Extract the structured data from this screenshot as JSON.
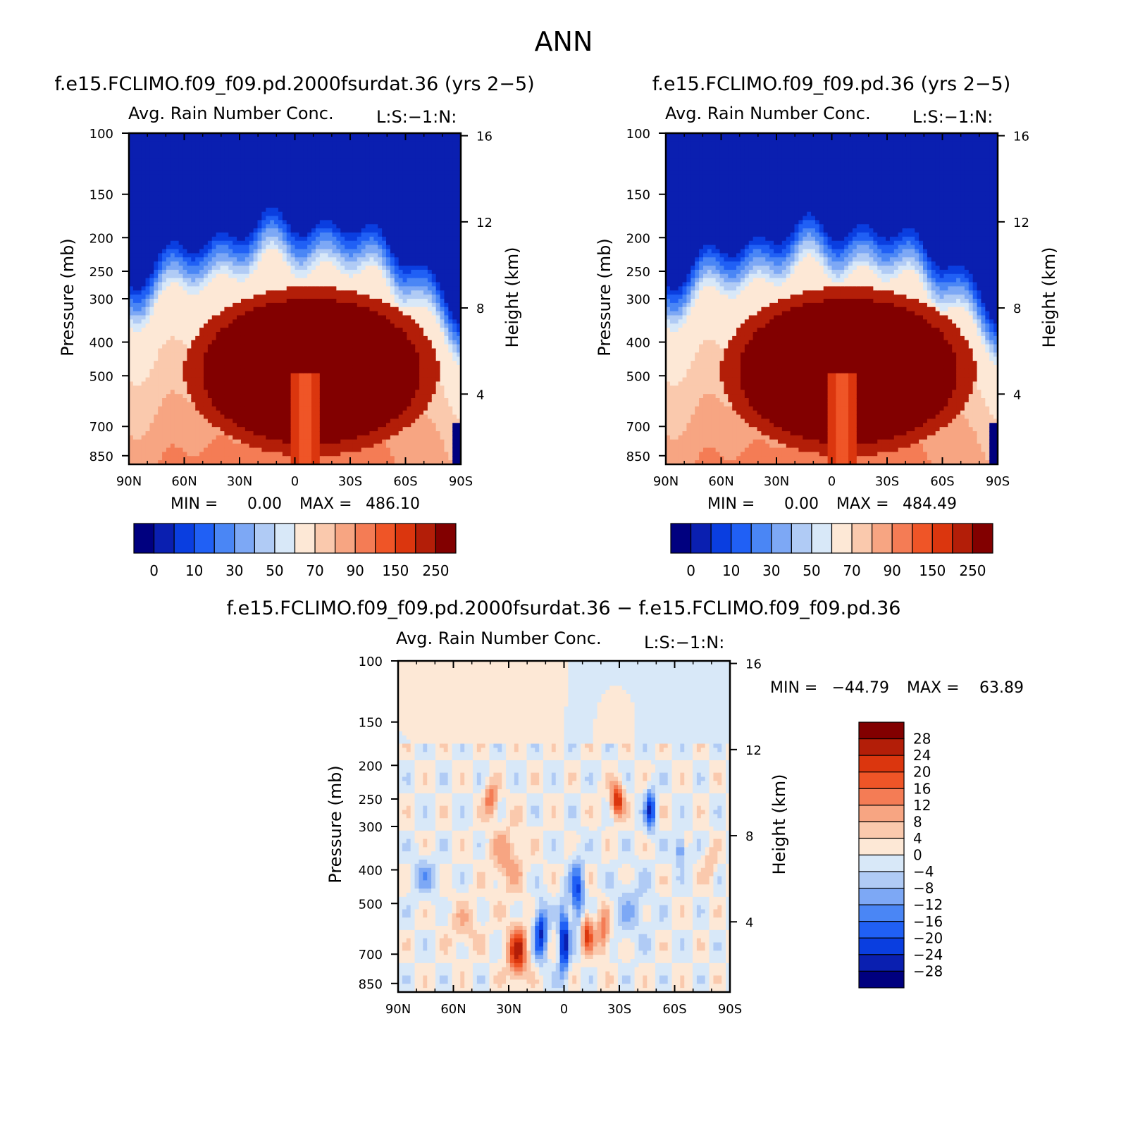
{
  "figure_title": "ANN",
  "colors": {
    "ctrl_levels": [
      "#00007f",
      "#0a1fb0",
      "#0a3ee0",
      "#2060f5",
      "#4a86f5",
      "#7da8f5",
      "#b0cbf5",
      "#d8e8f8",
      "#fde8d6",
      "#fac9ad",
      "#f7a582",
      "#f47c55",
      "#ef5527",
      "#db360e",
      "#b31e08",
      "#820000"
    ],
    "diff_levels": [
      "#00007f",
      "#0a1fb0",
      "#0a3ee0",
      "#2060f5",
      "#4a86f5",
      "#7da8f5",
      "#b0cbf5",
      "#d8e8f8",
      "#fde8d6",
      "#fac9ad",
      "#f7a582",
      "#f47c55",
      "#ef5527",
      "#db360e",
      "#b31e08",
      "#820000"
    ]
  },
  "chart_data": [
    {
      "type": "heatmap",
      "title": "f.e15.FCLIMO.f09_f09.pd.2000fsurdat.36 (yrs 2−5)",
      "subtitle_left": "Avg. Rain Number Conc.",
      "subtitle_right": "L:S:−1:N:",
      "xlabel": "",
      "ylabel": "Pressure (mb)",
      "ylabel_right": "Height (km)",
      "x_ticks": [
        "90N",
        "60N",
        "30N",
        "0",
        "30S",
        "60S",
        "90S"
      ],
      "y_ticks": [
        "100",
        "150",
        "200",
        "250",
        "300",
        "400",
        "500",
        "700",
        "850"
      ],
      "y_right_ticks": [
        "16",
        "12",
        "8",
        "4"
      ],
      "min_text": "MIN =",
      "min_value": "0.00",
      "max_text": "MAX =",
      "max_value": "486.10",
      "colorbar_labels": [
        "0",
        "10",
        "30",
        "50",
        "70",
        "90",
        "150",
        "250"
      ],
      "colorbar_orientation": "horizontal",
      "domain_min": 0.0,
      "domain_max": 486.1,
      "ylim": [
        100,
        850
      ]
    },
    {
      "type": "heatmap",
      "title": "f.e15.FCLIMO.f09_f09.pd.36 (yrs 2−5)",
      "subtitle_left": "Avg. Rain Number Conc.",
      "subtitle_right": "L:S:−1:N:",
      "xlabel": "",
      "ylabel": "Pressure (mb)",
      "ylabel_right": "Height (km)",
      "x_ticks": [
        "90N",
        "60N",
        "30N",
        "0",
        "30S",
        "60S",
        "90S"
      ],
      "y_ticks": [
        "100",
        "150",
        "200",
        "250",
        "300",
        "400",
        "500",
        "700",
        "850"
      ],
      "y_right_ticks": [
        "16",
        "12",
        "8",
        "4"
      ],
      "min_text": "MIN =",
      "min_value": "0.00",
      "max_text": "MAX =",
      "max_value": "484.49",
      "colorbar_labels": [
        "0",
        "10",
        "30",
        "50",
        "70",
        "90",
        "150",
        "250"
      ],
      "colorbar_orientation": "horizontal",
      "domain_min": 0.0,
      "domain_max": 484.49,
      "ylim": [
        100,
        850
      ]
    },
    {
      "type": "heatmap",
      "title": "f.e15.FCLIMO.f09_f09.pd.2000fsurdat.36 − f.e15.FCLIMO.f09_f09.pd.36",
      "subtitle_left": "Avg. Rain Number Conc.",
      "subtitle_right": "L:S:−1:N:",
      "xlabel": "",
      "ylabel": "Pressure (mb)",
      "ylabel_right": "Height (km)",
      "x_ticks": [
        "90N",
        "60N",
        "30N",
        "0",
        "30S",
        "60S",
        "90S"
      ],
      "y_ticks": [
        "100",
        "150",
        "200",
        "250",
        "300",
        "400",
        "500",
        "700",
        "850"
      ],
      "y_right_ticks": [
        "16",
        "12",
        "8",
        "4"
      ],
      "min_text": "MIN =",
      "min_value": "−44.79",
      "max_text": "MAX =",
      "max_value": "63.89",
      "colorbar_labels": [
        "28",
        "24",
        "20",
        "16",
        "12",
        "8",
        "4",
        "0",
        "−4",
        "−8",
        "−12",
        "−16",
        "−20",
        "−24",
        "−28"
      ],
      "colorbar_orientation": "vertical",
      "domain_min": -44.79,
      "domain_max": 63.89,
      "ylim": [
        100,
        850
      ]
    }
  ]
}
